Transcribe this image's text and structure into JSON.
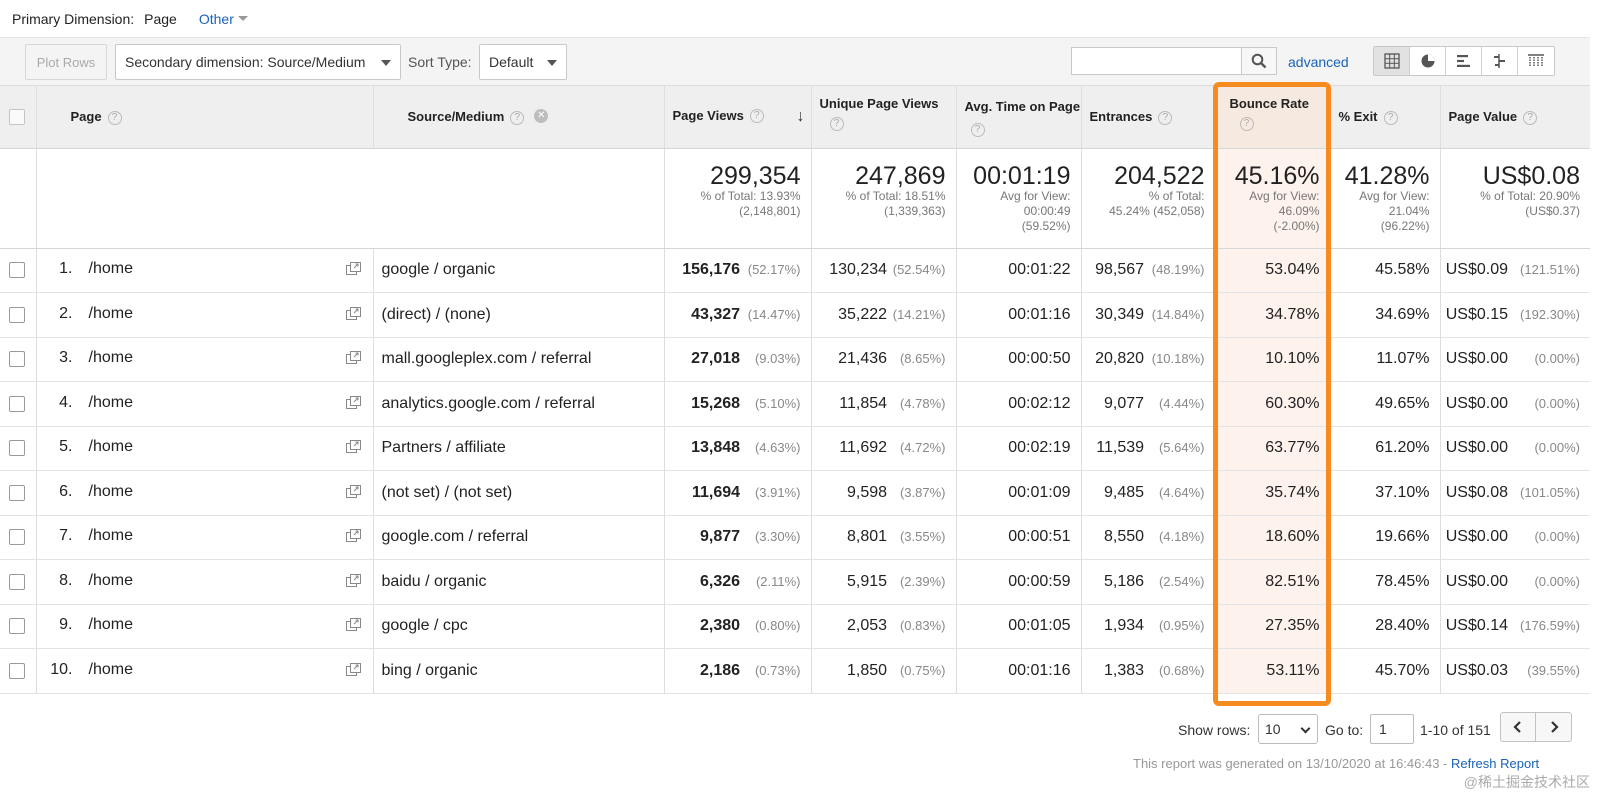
{
  "dimension_bar": {
    "label": "Primary Dimension:",
    "active": "Page",
    "other": "Other"
  },
  "toolbar": {
    "plot_rows": "Plot Rows",
    "secondary_dimension": "Secondary dimension: Source/Medium",
    "sort_type_label": "Sort Type:",
    "sort_type_value": "Default",
    "search_placeholder": "",
    "advanced": "advanced"
  },
  "table": {
    "headers": {
      "page": "Page",
      "source_medium": "Source/Medium",
      "page_views": "Page Views",
      "unique_page_views": "Unique Page Views",
      "avg_time": "Avg. Time on Page",
      "entrances": "Entrances",
      "bounce_rate": "Bounce Rate",
      "exit": "% Exit",
      "page_value": "Page Value"
    },
    "summary": {
      "page_views": {
        "value": "299,354",
        "l1": "% of Total: 13.93%",
        "l2": "(2,148,801)"
      },
      "unique_page_views": {
        "value": "247,869",
        "l1": "% of Total: 18.51%",
        "l2": "(1,339,363)"
      },
      "avg_time": {
        "value": "00:01:19",
        "l1": "Avg for View:",
        "l2": "00:00:49",
        "l3": "(59.52%)"
      },
      "entrances": {
        "value": "204,522",
        "l1": "% of Total:",
        "l2": "45.24% (452,058)"
      },
      "bounce_rate": {
        "value": "45.16%",
        "l1": "Avg for View:",
        "l2": "46.09%",
        "l3": "(-2.00%)"
      },
      "exit": {
        "value": "41.28%",
        "l1": "Avg for View:",
        "l2": "21.04%",
        "l3": "(96.22%)"
      },
      "page_value": {
        "value": "US$0.08",
        "l1": "% of Total: 20.90%",
        "l2": "(US$0.37)"
      }
    },
    "rows": [
      {
        "n": "1.",
        "page": "/home",
        "source": "google / organic",
        "pv": "156,176",
        "pv_pct": "(52.17%)",
        "upv": "130,234",
        "upv_pct": "(52.54%)",
        "time": "00:01:22",
        "ent": "98,567",
        "ent_pct": "(48.19%)",
        "bounce": "53.04%",
        "exit": "45.58%",
        "value": "US$0.09",
        "value_pct": "(121.51%)"
      },
      {
        "n": "2.",
        "page": "/home",
        "source": "(direct) / (none)",
        "pv": "43,327",
        "pv_pct": "(14.47%)",
        "upv": "35,222",
        "upv_pct": "(14.21%)",
        "time": "00:01:16",
        "ent": "30,349",
        "ent_pct": "(14.84%)",
        "bounce": "34.78%",
        "exit": "34.69%",
        "value": "US$0.15",
        "value_pct": "(192.30%)"
      },
      {
        "n": "3.",
        "page": "/home",
        "source": "mall.googleplex.com / referral",
        "pv": "27,018",
        "pv_pct": "(9.03%)",
        "upv": "21,436",
        "upv_pct": "(8.65%)",
        "time": "00:00:50",
        "ent": "20,820",
        "ent_pct": "(10.18%)",
        "bounce": "10.10%",
        "exit": "11.07%",
        "value": "US$0.00",
        "value_pct": "(0.00%)"
      },
      {
        "n": "4.",
        "page": "/home",
        "source": "analytics.google.com / referral",
        "pv": "15,268",
        "pv_pct": "(5.10%)",
        "upv": "11,854",
        "upv_pct": "(4.78%)",
        "time": "00:02:12",
        "ent": "9,077",
        "ent_pct": "(4.44%)",
        "bounce": "60.30%",
        "exit": "49.65%",
        "value": "US$0.00",
        "value_pct": "(0.00%)"
      },
      {
        "n": "5.",
        "page": "/home",
        "source": "Partners / affiliate",
        "pv": "13,848",
        "pv_pct": "(4.63%)",
        "upv": "11,692",
        "upv_pct": "(4.72%)",
        "time": "00:02:19",
        "ent": "11,539",
        "ent_pct": "(5.64%)",
        "bounce": "63.77%",
        "exit": "61.20%",
        "value": "US$0.00",
        "value_pct": "(0.00%)"
      },
      {
        "n": "6.",
        "page": "/home",
        "source": "(not set) / (not set)",
        "pv": "11,694",
        "pv_pct": "(3.91%)",
        "upv": "9,598",
        "upv_pct": "(3.87%)",
        "time": "00:01:09",
        "ent": "9,485",
        "ent_pct": "(4.64%)",
        "bounce": "35.74%",
        "exit": "37.10%",
        "value": "US$0.08",
        "value_pct": "(101.05%)"
      },
      {
        "n": "7.",
        "page": "/home",
        "source": "google.com / referral",
        "pv": "9,877",
        "pv_pct": "(3.30%)",
        "upv": "8,801",
        "upv_pct": "(3.55%)",
        "time": "00:00:51",
        "ent": "8,550",
        "ent_pct": "(4.18%)",
        "bounce": "18.60%",
        "exit": "19.66%",
        "value": "US$0.00",
        "value_pct": "(0.00%)"
      },
      {
        "n": "8.",
        "page": "/home",
        "source": "baidu / organic",
        "pv": "6,326",
        "pv_pct": "(2.11%)",
        "upv": "5,915",
        "upv_pct": "(2.39%)",
        "time": "00:00:59",
        "ent": "5,186",
        "ent_pct": "(2.54%)",
        "bounce": "82.51%",
        "exit": "78.45%",
        "value": "US$0.00",
        "value_pct": "(0.00%)"
      },
      {
        "n": "9.",
        "page": "/home",
        "source": "google / cpc",
        "pv": "2,380",
        "pv_pct": "(0.80%)",
        "upv": "2,053",
        "upv_pct": "(0.83%)",
        "time": "00:01:05",
        "ent": "1,934",
        "ent_pct": "(0.95%)",
        "bounce": "27.35%",
        "exit": "28.40%",
        "value": "US$0.14",
        "value_pct": "(176.59%)"
      },
      {
        "n": "10.",
        "page": "/home",
        "source": "bing / organic",
        "pv": "2,186",
        "pv_pct": "(0.73%)",
        "upv": "1,850",
        "upv_pct": "(0.75%)",
        "time": "00:01:16",
        "ent": "1,383",
        "ent_pct": "(0.68%)",
        "bounce": "53.11%",
        "exit": "45.70%",
        "value": "US$0.03",
        "value_pct": "(39.55%)"
      }
    ]
  },
  "footer": {
    "show_rows_label": "Show rows:",
    "show_rows_value": "10",
    "goto_label": "Go to:",
    "goto_value": "1",
    "range": "1-10 of 151",
    "generated": "This report was generated on 13/10/2020 at 16:46:43 - ",
    "refresh": "Refresh Report"
  },
  "watermark": "@稀土掘金技术社区",
  "colors": {
    "highlight_border": "#f68b1f",
    "highlight_fill": "#fdf3ec",
    "link": "#1a62b8"
  }
}
